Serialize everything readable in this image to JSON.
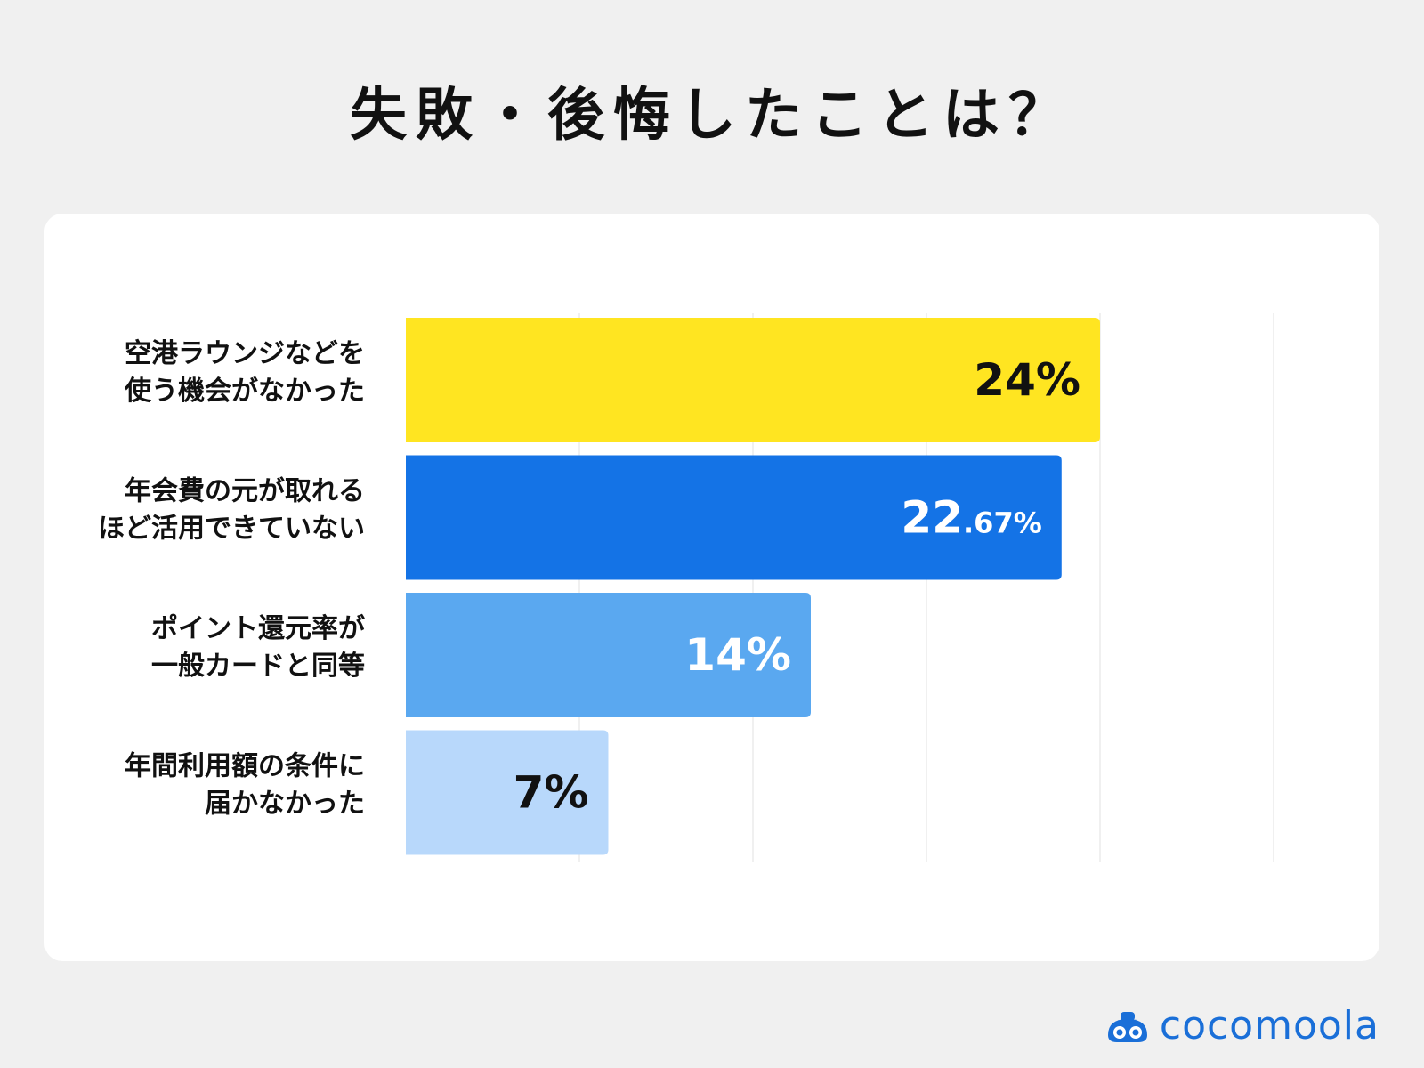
{
  "title": "失敗・後悔したことは？",
  "brand": {
    "name": "cocomoola",
    "icon": "cocomoola-logo-icon",
    "color": "#1a6fd8"
  },
  "chart_data": {
    "type": "bar",
    "orientation": "horizontal",
    "title": "失敗・後悔したことは？",
    "categories": [
      [
        "空港ラウンジなどを",
        "使う機会がなかった"
      ],
      [
        "年会費の元が取れる",
        "ほど活用できていない"
      ],
      [
        "ポイント還元率が",
        "一般カードと同等"
      ],
      [
        "年間利用額の条件に",
        "届かなかった"
      ]
    ],
    "values": [
      24,
      22.67,
      14,
      7
    ],
    "value_labels": [
      {
        "main": "24",
        "suffix": "%"
      },
      {
        "main": "22",
        "suffix": ".67%"
      },
      {
        "main": "14",
        "suffix": "%"
      },
      {
        "main": "7",
        "suffix": "%"
      }
    ],
    "bar_colors": [
      "#ffe521",
      "#1473e6",
      "#5aa8f0",
      "#b8d8fb"
    ],
    "label_colors": [
      "#111111",
      "#ffffff",
      "#ffffff",
      "#111111"
    ],
    "xlim": [
      0,
      30
    ],
    "grid": true,
    "xlabel": "",
    "ylabel": ""
  }
}
